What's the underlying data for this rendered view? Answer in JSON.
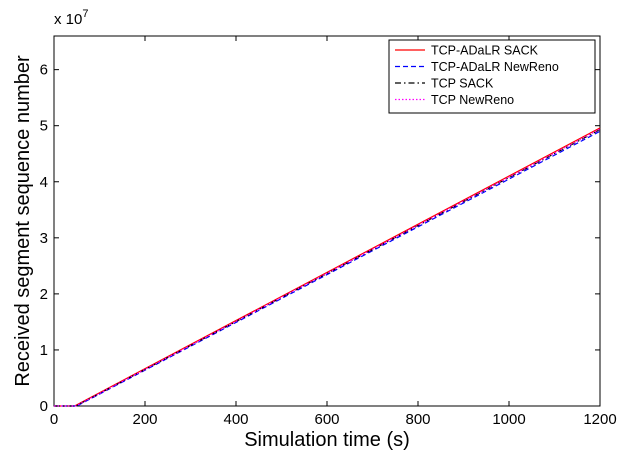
{
  "chart_data": {
    "type": "line",
    "xlabel": "Simulation time (s)",
    "ylabel": "Received segment sequence number",
    "xlim": [
      0,
      1200
    ],
    "ylim": [
      0,
      6.6
    ],
    "y_multiplier_label": "x 10",
    "y_multiplier_exponent": "7",
    "x_ticks": [
      0,
      200,
      400,
      600,
      800,
      1000,
      1200
    ],
    "x_tick_labels": [
      "0",
      "200",
      "400",
      "600",
      "800",
      "1000",
      "1200"
    ],
    "y_ticks": [
      0,
      1,
      2,
      3,
      4,
      5,
      6
    ],
    "y_tick_labels": [
      "0",
      "1",
      "2",
      "3",
      "4",
      "5",
      "6"
    ],
    "grid": false,
    "legend_position": "top-right",
    "series": [
      {
        "name": "TCP-ADaLR SACK",
        "color": "#ff0000",
        "dash": "solid",
        "x": [
          0,
          45,
          1200
        ],
        "y": [
          0,
          0,
          4.96
        ]
      },
      {
        "name": "TCP-ADaLR NewReno",
        "color": "#0000ff",
        "dash": "dashed",
        "x": [
          0,
          50,
          1200
        ],
        "y": [
          0,
          0,
          4.9
        ]
      },
      {
        "name": "TCP SACK",
        "color": "#000000",
        "dash": "dashdot",
        "x": [
          0,
          48,
          1200
        ],
        "y": [
          0,
          0,
          4.93
        ]
      },
      {
        "name": "TCP NewReno",
        "color": "#ff00ff",
        "dash": "dotted",
        "x": [
          0,
          48,
          1200
        ],
        "y": [
          0,
          0,
          4.94
        ]
      }
    ]
  }
}
